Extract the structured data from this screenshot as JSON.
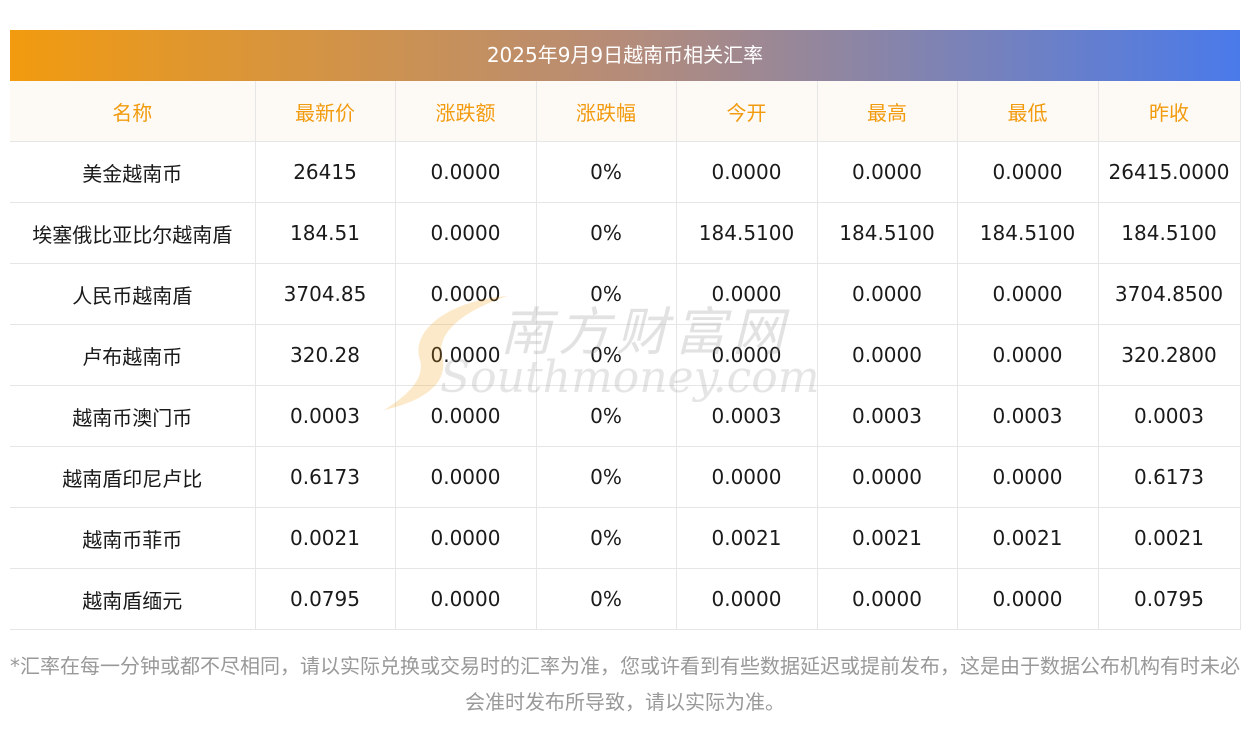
{
  "title": "2025年9月9日越南币相关汇率",
  "headers": [
    "名称",
    "最新价",
    "涨跌额",
    "涨跌幅",
    "今开",
    "最高",
    "最低",
    "昨收"
  ],
  "rows": [
    [
      "美金越南币",
      "26415",
      "0.0000",
      "0%",
      "0.0000",
      "0.0000",
      "0.0000",
      "26415.0000"
    ],
    [
      "埃塞俄比亚比尔越南盾",
      "184.51",
      "0.0000",
      "0%",
      "184.5100",
      "184.5100",
      "184.5100",
      "184.5100"
    ],
    [
      "人民币越南盾",
      "3704.85",
      "0.0000",
      "0%",
      "0.0000",
      "0.0000",
      "0.0000",
      "3704.8500"
    ],
    [
      "卢布越南币",
      "320.28",
      "0.0000",
      "0%",
      "0.0000",
      "0.0000",
      "0.0000",
      "320.2800"
    ],
    [
      "越南币澳门币",
      "0.0003",
      "0.0000",
      "0%",
      "0.0003",
      "0.0003",
      "0.0003",
      "0.0003"
    ],
    [
      "越南盾印尼卢比",
      "0.6173",
      "0.0000",
      "0%",
      "0.0000",
      "0.0000",
      "0.0000",
      "0.6173"
    ],
    [
      "越南币菲币",
      "0.0021",
      "0.0000",
      "0%",
      "0.0021",
      "0.0021",
      "0.0021",
      "0.0021"
    ],
    [
      "越南盾缅元",
      "0.0795",
      "0.0000",
      "0%",
      "0.0000",
      "0.0000",
      "0.0000",
      "0.0795"
    ]
  ],
  "note": "*汇率在每一分钟或都不尽相同，请以实际兑换或交易时的汇率为准，您或许看到有些数据延迟或提前发布，这是由于数据公布机构有时未必会准时发布所导致，请以实际为准。",
  "watermark": {
    "cn": "南方财富网",
    "en": "Southmoney.com"
  },
  "colors": {
    "header_text": "#f29b0f",
    "gradient_start": "#f29b0f",
    "gradient_end": "#4a7aea"
  }
}
